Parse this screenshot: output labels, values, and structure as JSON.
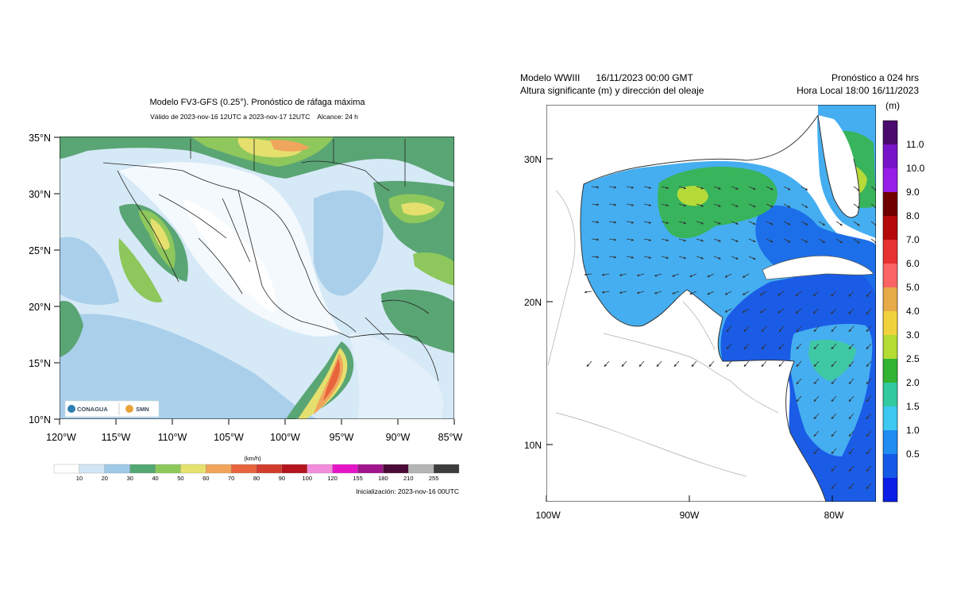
{
  "left_panel": {
    "title": "Modelo FV3-GFS (0.25°). Pronóstico de ráfaga máxima",
    "subtitle": "Válido de 2023-nov-16 12UTC a 2023-nov-17 12UTC    Alcance: 24 h",
    "lat_labels": [
      "35°N",
      "30°N",
      "25°N",
      "20°N",
      "15°N",
      "10°N"
    ],
    "lon_labels": [
      "120°W",
      "115°W",
      "110°W",
      "105°W",
      "100°W",
      "95°W",
      "90°W",
      "85°W"
    ],
    "legend_unit": "(km/h)",
    "legend_labels": [
      "10",
      "20",
      "30",
      "40",
      "50",
      "60",
      "70",
      "80",
      "90",
      "100",
      "120",
      "155",
      "180",
      "210",
      "255"
    ],
    "legend_colors": [
      "#ffffff",
      "#d2e6f5",
      "#9fc9e8",
      "#52a872",
      "#8cc95a",
      "#e6e26e",
      "#f2a45a",
      "#e8643c",
      "#d23c2d",
      "#b4141e",
      "#f28cdc",
      "#e614c8",
      "#a0148c",
      "#4b0a37",
      "#b4b4b4",
      "#3c3c3c"
    ],
    "init_text": "Inicialización: 2023-nov-16 00UTC",
    "logo_conagua": "CONAGUA",
    "logo_smn": "SMN"
  },
  "right_panel": {
    "header_left_1": "Modelo WWIII      16/11/2023 00:00 GMT",
    "header_left_2": "Altura significante (m) y dirección del oleaje",
    "header_right_1": "Pronóstico a 024 hrs",
    "header_right_2": "Hora Local 18:00 16/11/2023",
    "colorbar_unit": "(m)",
    "colorbar_labels": [
      "11.0",
      "10.0",
      "9.0",
      "8.0",
      "7.0",
      "6.0",
      "5.0",
      "4.0",
      "3.0",
      "2.5",
      "2.0",
      "1.5",
      "1.0",
      "0.5"
    ],
    "colorbar_colors": [
      "#4b0a6e",
      "#7814c8",
      "#961ee6",
      "#6e0000",
      "#b40a0a",
      "#e63232",
      "#fa6464",
      "#e6aa46",
      "#f0d23c",
      "#b4dc32",
      "#32b432",
      "#32c8a0",
      "#3cc8f0",
      "#1e8cf0",
      "#145ae6",
      "#0a1ee6"
    ],
    "lat_labels": [
      "30N",
      "20N",
      "10N"
    ],
    "lon_labels": [
      "100W",
      "90W",
      "80W"
    ]
  }
}
